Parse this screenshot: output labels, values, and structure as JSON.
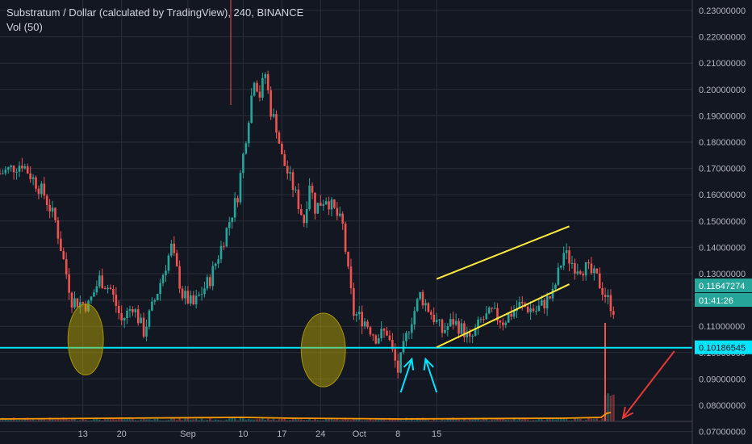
{
  "header": {
    "title": "Substratum / Dollar (calculated by TradingView), 240, BINANCE",
    "volume_label": "Vol (50)"
  },
  "colors": {
    "background": "#131722",
    "up": "#26a69a",
    "down": "#ef5350",
    "support_line": "#00e5ff",
    "channel": "#ffeb3b",
    "arrow_cyan": "#00e5ff",
    "arrow_red": "#e53935",
    "volume_ma": "#ff9800",
    "highlight": "#c8b400"
  },
  "chart_data": {
    "type": "candlestick",
    "symbol": "Substratum / Dollar",
    "interval": "240",
    "exchange": "BINANCE",
    "y_axis": {
      "ticks": [
        "0.23000000",
        "0.22000000",
        "0.21000000",
        "0.20000000",
        "0.19000000",
        "0.18000000",
        "0.17000000",
        "0.16000000",
        "0.15000000",
        "0.14000000",
        "0.13000000",
        "0.12000000",
        "0.11000000",
        "0.10000000",
        "0.09000000",
        "0.08000000",
        "0.07000000"
      ],
      "ylim": [
        0.062,
        0.232
      ]
    },
    "x_axis": {
      "ticks": [
        "13",
        "20",
        "Sep",
        "10",
        "17",
        "24",
        "Oct",
        "8",
        "15"
      ]
    },
    "price_path": [
      [
        0,
        0.168
      ],
      [
        4,
        0.172
      ],
      [
        8,
        0.16
      ],
      [
        10,
        0.15
      ],
      [
        13,
        0.12
      ],
      [
        16,
        0.118
      ],
      [
        18,
        0.128
      ],
      [
        20,
        0.124
      ],
      [
        22,
        0.112
      ],
      [
        24,
        0.118
      ],
      [
        26,
        0.108
      ],
      [
        28,
        0.12
      ],
      [
        31,
        0.14
      ],
      [
        33,
        0.122
      ],
      [
        35,
        0.118
      ],
      [
        38,
        0.128
      ],
      [
        40,
        0.14
      ],
      [
        43,
        0.16
      ],
      [
        45,
        0.19
      ],
      [
        46,
        0.205
      ],
      [
        47,
        0.198
      ],
      [
        48,
        0.206
      ],
      [
        49,
        0.192
      ],
      [
        50,
        0.186
      ],
      [
        51,
        0.174
      ],
      [
        53,
        0.163
      ],
      [
        55,
        0.15
      ],
      [
        56,
        0.165
      ],
      [
        57,
        0.155
      ],
      [
        59,
        0.159
      ],
      [
        61,
        0.152
      ],
      [
        62,
        0.148
      ],
      [
        63,
        0.13
      ],
      [
        64,
        0.115
      ],
      [
        66,
        0.112
      ],
      [
        68,
        0.106
      ],
      [
        70,
        0.108
      ],
      [
        71,
        0.1
      ],
      [
        72,
        0.093
      ],
      [
        74,
        0.11
      ],
      [
        76,
        0.122
      ],
      [
        78,
        0.115
      ],
      [
        80,
        0.108
      ],
      [
        82,
        0.112
      ],
      [
        84,
        0.108
      ],
      [
        85,
        0.104
      ],
      [
        87,
        0.112
      ],
      [
        89,
        0.115
      ],
      [
        91,
        0.112
      ],
      [
        94,
        0.118
      ],
      [
        97,
        0.116
      ],
      [
        100,
        0.122
      ],
      [
        102,
        0.138
      ],
      [
        104,
        0.133
      ],
      [
        106,
        0.132
      ],
      [
        108,
        0.128
      ],
      [
        110,
        0.12
      ],
      [
        111,
        0.1165
      ]
    ],
    "last_price": "0.11647274",
    "countdown": "01:41:26",
    "support_level": 0.10186545,
    "support_label": "0.10186545",
    "annotations": {
      "channel_upper": [
        [
          47,
          0.128
        ],
        [
          67,
          0.148
        ]
      ],
      "channel_lower": [
        [
          47,
          0.102
        ],
        [
          67,
          0.126
        ]
      ],
      "ellipses": [
        {
          "center_day": 15.5,
          "center_price": 0.105,
          "rx_days": 2.0,
          "ry_price": 0.0135
        },
        {
          "center_day": 58.5,
          "center_price": 0.101,
          "rx_days": 2.5,
          "ry_price": 0.014
        }
      ],
      "cyan_arrows": [
        [
          [
            69.5,
            0.068
          ],
          [
            71.5,
            0.1
          ]
        ],
        [
          [
            76.0,
            0.068
          ],
          [
            74.0,
            0.1
          ]
        ]
      ],
      "red_arrow": [
        [
          120.0,
          0.103
        ],
        [
          111.2,
          0.077
        ]
      ]
    },
    "grid": true,
    "legend": "none"
  }
}
